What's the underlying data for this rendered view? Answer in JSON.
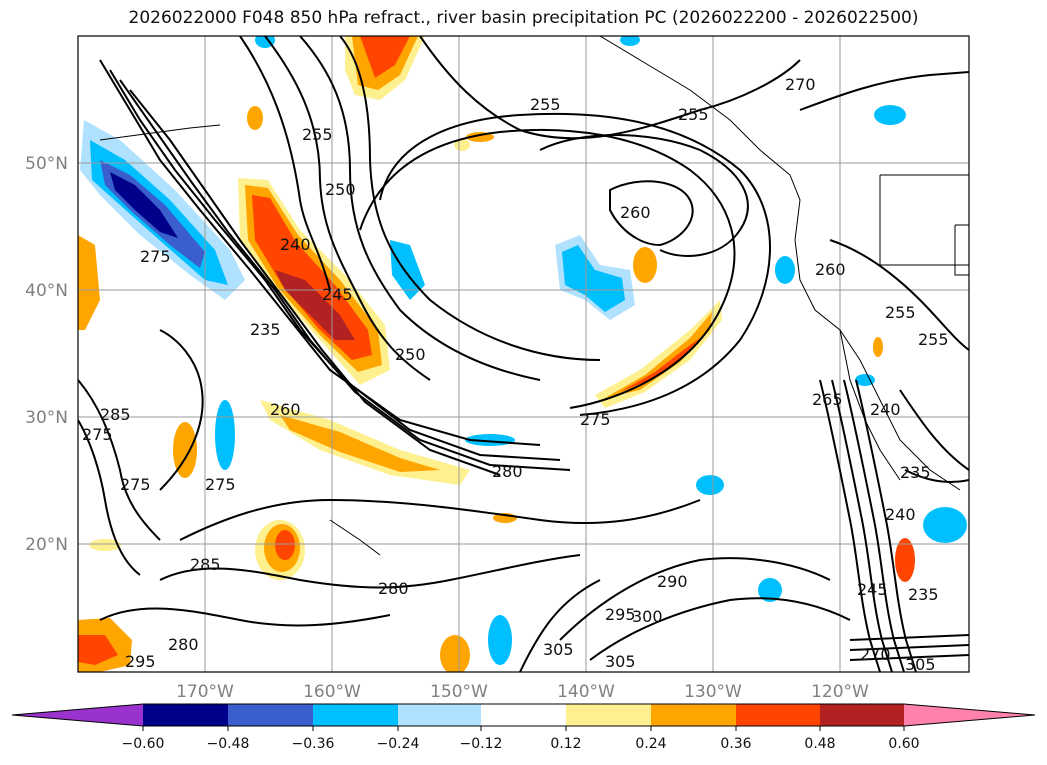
{
  "title": "2026022000 F048 850 hPa refract., river basin precipitation PC (2026022200 - 2026022500)",
  "lat_labels": [
    "50°N",
    "40°N",
    "30°N",
    "20°N"
  ],
  "lon_labels": [
    "170°W",
    "160°W",
    "150°W",
    "140°W",
    "130°W",
    "120°W"
  ],
  "colorbar": {
    "ticks": [
      "−0.60",
      "−0.48",
      "−0.36",
      "−0.24",
      "−0.12",
      "0.12",
      "0.24",
      "0.36",
      "0.48",
      "0.60"
    ],
    "colors": [
      "#9a32cd",
      "#00008b",
      "#3a5fcd",
      "#00bfff",
      "#b0e2ff",
      "#ffffff",
      "#fff08f",
      "#ffa500",
      "#ff4500",
      "#b22222",
      "#ff82ab"
    ]
  },
  "contour_labels": [
    "270",
    "255",
    "255",
    "255",
    "250",
    "260",
    "240",
    "245",
    "235",
    "250",
    "275",
    "285",
    "275",
    "275",
    "275",
    "260",
    "280",
    "275",
    "285",
    "280",
    "290",
    "295",
    "300",
    "305",
    "305",
    "280",
    "295",
    "265",
    "260",
    "255",
    "255",
    "240",
    "235",
    "240",
    "245",
    "235",
    "270",
    "305"
  ],
  "chart_data": {
    "type": "map",
    "projection": "equirectangular",
    "lon_range": [
      -177,
      -107
    ],
    "lat_range": [
      10,
      60
    ],
    "shaded_field": "river basin precipitation PC",
    "contour_field": "850 hPa refractivity",
    "color_levels": [
      -0.6,
      -0.48,
      -0.36,
      -0.24,
      -0.12,
      0.12,
      0.24,
      0.36,
      0.48,
      0.6
    ],
    "colorbar_extend": "both",
    "grid": true
  }
}
